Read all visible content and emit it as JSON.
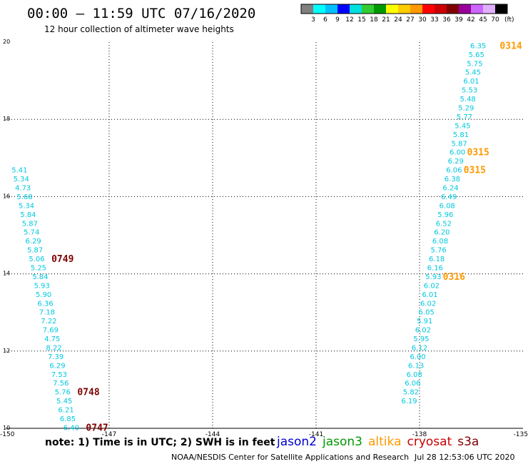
{
  "header": {
    "title": "00:00 – 11:59 UTC 07/16/2020",
    "subtitle": "12 hour collection of altimeter wave heights"
  },
  "colorbar": {
    "colors": [
      "#808080",
      "#00ffff",
      "#00bfff",
      "#0000ff",
      "#00e0e0",
      "#33cc33",
      "#009900",
      "#ffff00",
      "#ffcc00",
      "#ff9900",
      "#ff0000",
      "#cc0000",
      "#800000",
      "#990099",
      "#cc66ff",
      "#e0b0ff",
      "#000000"
    ],
    "labels": [
      "3",
      "6",
      "9",
      "12",
      "15",
      "18",
      "21",
      "24",
      "27",
      "30",
      "33",
      "36",
      "39",
      "42",
      "45",
      "70"
    ],
    "unit": "(ft)"
  },
  "note": "note: 1) Time is in UTC; 2) SWH is in feet",
  "credit": "NOAA/NESDIS Center for Satellite Applications and Research",
  "generated": "Jul 28 12:53:06 UTC 2020",
  "satellites": [
    {
      "name": "jason2",
      "color": "#0000cc"
    },
    {
      "name": "jason3",
      "color": "#009900"
    },
    {
      "name": "altika",
      "color": "#ff9900"
    },
    {
      "name": "cryosat",
      "color": "#cc0000"
    },
    {
      "name": "s3a",
      "color": "#800000"
    }
  ],
  "chart_data": {
    "type": "scatter",
    "xlim": [
      -150,
      -135
    ],
    "ylim": [
      10,
      20
    ],
    "x_ticks": [
      "-150",
      "-147",
      "-144",
      "-141",
      "-138",
      "-135"
    ],
    "y_ticks": [
      "10",
      "12",
      "14",
      "16",
      "18",
      "20"
    ],
    "grid": true,
    "tracks": [
      {
        "name": "left-track",
        "color": "#00c8e0",
        "points": [
          {
            "x": -149.6,
            "y": 16.68,
            "v": "5.41"
          },
          {
            "x": -149.55,
            "y": 16.45,
            "v": "5.34"
          },
          {
            "x": -149.5,
            "y": 16.22,
            "v": "4.73"
          },
          {
            "x": -149.45,
            "y": 15.99,
            "v": "5.68"
          },
          {
            "x": -149.4,
            "y": 15.76,
            "v": "5.34"
          },
          {
            "x": -149.35,
            "y": 15.53,
            "v": "5.84"
          },
          {
            "x": -149.3,
            "y": 15.3,
            "v": "5.87"
          },
          {
            "x": -149.25,
            "y": 15.07,
            "v": "5.74"
          },
          {
            "x": -149.2,
            "y": 14.84,
            "v": "6.29"
          },
          {
            "x": -149.15,
            "y": 14.61,
            "v": "5.87"
          },
          {
            "x": -149.1,
            "y": 14.38,
            "v": "5.06"
          },
          {
            "x": -149.05,
            "y": 14.15,
            "v": "5.25"
          },
          {
            "x": -149.0,
            "y": 13.92,
            "v": "5.84"
          },
          {
            "x": -148.95,
            "y": 13.69,
            "v": "5.93"
          },
          {
            "x": -148.9,
            "y": 13.46,
            "v": "5.90"
          },
          {
            "x": -148.85,
            "y": 13.23,
            "v": "6.36"
          },
          {
            "x": -148.8,
            "y": 13.0,
            "v": "7.18"
          },
          {
            "x": -148.75,
            "y": 12.77,
            "v": "7.22"
          },
          {
            "x": -148.7,
            "y": 12.54,
            "v": "7.69"
          },
          {
            "x": -148.65,
            "y": 12.31,
            "v": "4.75"
          },
          {
            "x": -148.6,
            "y": 12.08,
            "v": "8.22"
          },
          {
            "x": -148.55,
            "y": 11.85,
            "v": "7.39"
          },
          {
            "x": -148.5,
            "y": 11.62,
            "v": "6.29"
          },
          {
            "x": -148.45,
            "y": 11.39,
            "v": "7.53"
          },
          {
            "x": -148.4,
            "y": 11.16,
            "v": "7.56"
          },
          {
            "x": -148.35,
            "y": 10.93,
            "v": "5.76"
          },
          {
            "x": -148.3,
            "y": 10.7,
            "v": "5.45"
          },
          {
            "x": -148.25,
            "y": 10.47,
            "v": "6.21"
          },
          {
            "x": -148.2,
            "y": 10.24,
            "v": "6.85"
          },
          {
            "x": -148.1,
            "y": 10.01,
            "v": "6.40"
          }
        ]
      },
      {
        "name": "right-track",
        "color": "#00c8e0",
        "points": [
          {
            "x": -136.3,
            "y": 19.9,
            "v": "6.35"
          },
          {
            "x": -136.35,
            "y": 19.67,
            "v": "5.65"
          },
          {
            "x": -136.4,
            "y": 19.44,
            "v": "5.75"
          },
          {
            "x": -136.45,
            "y": 19.21,
            "v": "5.45"
          },
          {
            "x": -136.5,
            "y": 18.98,
            "v": "6.01"
          },
          {
            "x": -136.55,
            "y": 18.75,
            "v": "5.53"
          },
          {
            "x": -136.6,
            "y": 18.52,
            "v": "5.48"
          },
          {
            "x": -136.65,
            "y": 18.29,
            "v": "5.29"
          },
          {
            "x": -136.7,
            "y": 18.06,
            "v": "5.77"
          },
          {
            "x": -136.75,
            "y": 17.83,
            "v": "5.45"
          },
          {
            "x": -136.8,
            "y": 17.6,
            "v": "5.81"
          },
          {
            "x": -136.85,
            "y": 17.37,
            "v": "5.87"
          },
          {
            "x": -136.9,
            "y": 17.14,
            "v": "6.00"
          },
          {
            "x": -136.95,
            "y": 16.91,
            "v": "6.29"
          },
          {
            "x": -137.0,
            "y": 16.68,
            "v": "6.06"
          },
          {
            "x": -137.05,
            "y": 16.45,
            "v": "6.38"
          },
          {
            "x": -137.1,
            "y": 16.22,
            "v": "6.24"
          },
          {
            "x": -137.15,
            "y": 15.99,
            "v": "6.49"
          },
          {
            "x": -137.2,
            "y": 15.76,
            "v": "6.08"
          },
          {
            "x": -137.25,
            "y": 15.53,
            "v": "5.96"
          },
          {
            "x": -137.3,
            "y": 15.3,
            "v": "6.52"
          },
          {
            "x": -137.35,
            "y": 15.07,
            "v": "6.20"
          },
          {
            "x": -137.4,
            "y": 14.84,
            "v": "6.08"
          },
          {
            "x": -137.45,
            "y": 14.61,
            "v": "5.76"
          },
          {
            "x": -137.5,
            "y": 14.38,
            "v": "6.18"
          },
          {
            "x": -137.55,
            "y": 14.15,
            "v": "6.16"
          },
          {
            "x": -137.6,
            "y": 13.92,
            "v": "5.93"
          },
          {
            "x": -137.65,
            "y": 13.69,
            "v": "6.02"
          },
          {
            "x": -137.7,
            "y": 13.46,
            "v": "6.01"
          },
          {
            "x": -137.75,
            "y": 13.23,
            "v": "6.02"
          },
          {
            "x": -137.8,
            "y": 13.0,
            "v": "6.05"
          },
          {
            "x": -137.85,
            "y": 12.77,
            "v": "5.91"
          },
          {
            "x": -137.9,
            "y": 12.54,
            "v": "6.02"
          },
          {
            "x": -137.95,
            "y": 12.31,
            "v": "5.95"
          },
          {
            "x": -138.0,
            "y": 12.08,
            "v": "6.12"
          },
          {
            "x": -138.05,
            "y": 11.85,
            "v": "6.00"
          },
          {
            "x": -138.1,
            "y": 11.62,
            "v": "6.13"
          },
          {
            "x": -138.15,
            "y": 11.39,
            "v": "6.08"
          },
          {
            "x": -138.2,
            "y": 11.16,
            "v": "6.06"
          },
          {
            "x": -138.25,
            "y": 10.93,
            "v": "5.82"
          },
          {
            "x": -138.3,
            "y": 10.7,
            "v": "6.19"
          }
        ]
      }
    ],
    "time_labels": [
      {
        "x": -135.35,
        "y": 19.9,
        "text": "0314",
        "color": "#ff9900"
      },
      {
        "x": -136.3,
        "y": 17.14,
        "text": "0315",
        "color": "#ff9900"
      },
      {
        "x": -136.4,
        "y": 16.68,
        "text": "0315",
        "color": "#ff9900"
      },
      {
        "x": -137.0,
        "y": 13.92,
        "text": "0316",
        "color": "#ff9900"
      },
      {
        "x": -148.35,
        "y": 14.38,
        "text": "0749",
        "color": "#800000"
      },
      {
        "x": -147.6,
        "y": 10.93,
        "text": "0748",
        "color": "#800000"
      },
      {
        "x": -147.35,
        "y": 10.01,
        "text": "0747",
        "color": "#800000"
      }
    ]
  }
}
